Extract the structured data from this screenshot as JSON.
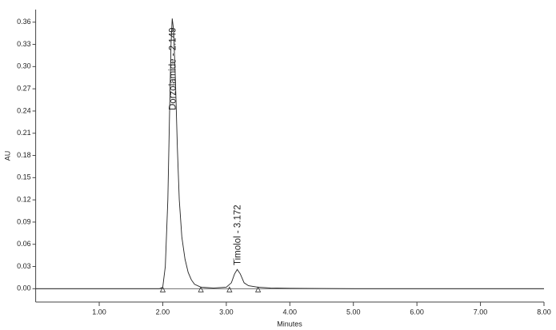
{
  "chart_data": {
    "type": "line",
    "x_label": "Minutes",
    "y_label": "AU",
    "xlim": [
      0,
      8
    ],
    "ylim": [
      -0.018,
      0.377
    ],
    "xticks": [
      {
        "value": 1,
        "label": "1.00"
      },
      {
        "value": 2,
        "label": "2.00"
      },
      {
        "value": 3,
        "label": "3.00"
      },
      {
        "value": 4,
        "label": "4.00"
      },
      {
        "value": 5,
        "label": "5.00"
      },
      {
        "value": 6,
        "label": "6.00"
      },
      {
        "value": 7,
        "label": "7.00"
      },
      {
        "value": 8,
        "label": "8.00"
      }
    ],
    "yticks": [
      {
        "value": 0,
        "label": "0.00"
      },
      {
        "value": 0.03,
        "label": "0.03"
      },
      {
        "value": 0.06,
        "label": "0.06"
      },
      {
        "value": 0.09,
        "label": "0.09"
      },
      {
        "value": 0.12,
        "label": "0.12"
      },
      {
        "value": 0.15,
        "label": "0.15"
      },
      {
        "value": 0.18,
        "label": "0.18"
      },
      {
        "value": 0.21,
        "label": "0.21"
      },
      {
        "value": 0.24,
        "label": "0.24"
      },
      {
        "value": 0.27,
        "label": "0.27"
      },
      {
        "value": 0.3,
        "label": "0.30"
      },
      {
        "value": 0.33,
        "label": "0.33"
      },
      {
        "value": 0.36,
        "label": "0.36"
      }
    ],
    "color": "#222222",
    "x": [
      0,
      1.95,
      2.0,
      2.04,
      2.08,
      2.11,
      2.13,
      2.149,
      2.17,
      2.2,
      2.23,
      2.26,
      2.3,
      2.35,
      2.4,
      2.45,
      2.5,
      2.6,
      2.8,
      3.0,
      3.08,
      3.13,
      3.172,
      3.22,
      3.28,
      3.35,
      3.5,
      3.7,
      4.0,
      5.0,
      8.0
    ],
    "values": [
      0,
      0,
      0.002,
      0.03,
      0.12,
      0.25,
      0.33,
      0.365,
      0.35,
      0.28,
      0.19,
      0.12,
      0.07,
      0.04,
      0.022,
      0.012,
      0.006,
      0.002,
      0.001,
      0.002,
      0.008,
      0.02,
      0.026,
      0.02,
      0.008,
      0.004,
      0.002,
      0.001,
      0.0005,
      0,
      0
    ],
    "baseline_markers": [
      2.0,
      2.6,
      3.05,
      3.5
    ],
    "annotations": [
      {
        "text": "Dorzolamide - 2.149",
        "x": 2.149
      },
      {
        "text": "Timolol - 3.172",
        "x": 3.172
      }
    ]
  }
}
